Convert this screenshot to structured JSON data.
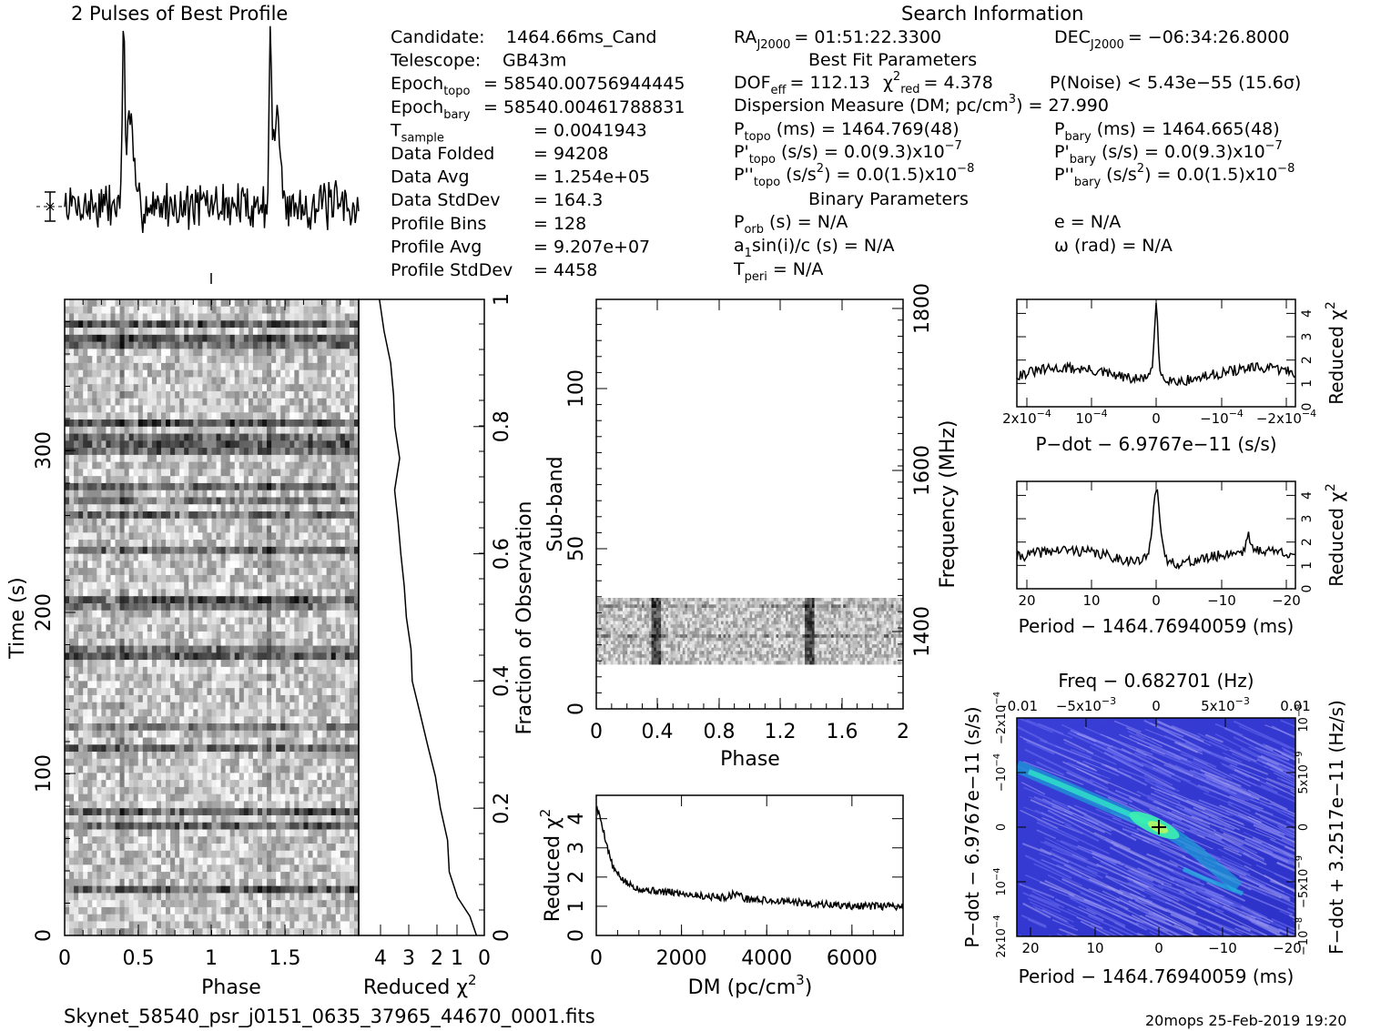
{
  "page": {
    "profile_title": "2 Pulses of Best Profile",
    "search_title": "Search Information",
    "filename": "Skynet_58540_psr_j0151_0635_37965_44670_0001.fits",
    "footer_stamp": "20mops 25-Feb-2019 19:20"
  },
  "info": {
    "col1": [
      {
        "label": "Candidate:",
        "value": "1464.66ms_Cand"
      },
      {
        "label": "Telescope:",
        "value": "GB43m"
      },
      {
        "label": "Epoch",
        "sub": "topo",
        "value": "= 58540.00756944445"
      },
      {
        "label": "Epoch",
        "sub": "bary",
        "value": "= 58540.00461788831"
      },
      {
        "label": "T",
        "sub": "sample",
        "value": "= 0.0041943"
      },
      {
        "label": "Data Folded",
        "value": "= 94208"
      },
      {
        "label": "Data Avg",
        "value": "= 1.254e+05"
      },
      {
        "label": "Data StdDev",
        "value": "= 164.3"
      },
      {
        "label": "Profile Bins",
        "value": "= 128"
      },
      {
        "label": "Profile Avg",
        "value": "= 9.207e+07"
      },
      {
        "label": "Profile StdDev",
        "value": "= 4458"
      }
    ],
    "ra": "RA",
    "ra_sub": "J2000",
    "ra_value": "= 01:51:22.3300",
    "dec": "DEC",
    "dec_sub": "J2000",
    "dec_value": "= −06:34:26.8000",
    "best_fit_title": "Best Fit Parameters",
    "dof": "DOF",
    "dof_sub": "eff",
    "dof_value": "= 112.13",
    "chi_label": "χ",
    "chi_sup": "2",
    "chi_sub": "red",
    "chi_value": "= 4.378",
    "pnoise": "P(Noise) < 5.43e−55  (15.6σ)",
    "dm_line": "Dispersion Measure (DM; pc/cm",
    "dm_sup": "3",
    "dm_value": ") = 27.990",
    "p_topo": "P",
    "p_topo_sub": "topo",
    "p_topo_value": "(ms) =  1464.769(48)",
    "p_bary": "P",
    "p_bary_sub": "bary",
    "p_bary_value": "(ms) =  1464.665(48)",
    "pd_topo": "P'",
    "pd_topo_sub": "topo",
    "pd_topo_value": "(s/s) = 0.0(9.3)x10",
    "pd_topo_exp": "−7",
    "pd_bary": "P'",
    "pd_bary_sub": "bary",
    "pd_bary_value": "(s/s) = 0.0(9.3)x10",
    "pd_bary_exp": "−7",
    "pdd_topo": "P''",
    "pdd_topo_sub": "topo",
    "pdd_topo_value": "(s/s",
    "pdd_topo_value2": ") = 0.0(1.5)x10",
    "pdd_topo_exp": "−8",
    "pdd_bary": "P''",
    "pdd_bary_sub": "bary",
    "pdd_bary_value": "(s/s",
    "pdd_bary_value2": ") = 0.0(1.5)x10",
    "pdd_bary_exp": "−8",
    "sq": "2",
    "binary_title": "Binary Parameters",
    "porb": "P",
    "porb_sub": "orb",
    "porb_value": "(s) = N/A",
    "asini": "a",
    "asini_sub": "1",
    "asini_value": "sin(i)/c (s) = N/A",
    "tperi": "T",
    "tperi_sub": "peri",
    "tperi_value": "= N/A",
    "ecc": "e = N/A",
    "omega": "ω (rad) = N/A"
  },
  "chart_data": [
    {
      "type": "line",
      "id": "profile",
      "title": "2 Pulses of Best Profile",
      "x": "phase 0-2 (two pulses)",
      "peaks": [
        {
          "phase": 0.4,
          "height": 1.0
        },
        {
          "phase": 1.4,
          "height": 1.0
        }
      ],
      "baseline_note": "noise around mean"
    },
    {
      "type": "heatmap",
      "id": "time-phase",
      "xlabel": "Phase",
      "ylabel": "Time (s)",
      "xticks": [
        "0",
        "0.5",
        "1",
        "1.5"
      ],
      "yticks": [
        "0",
        "100",
        "200",
        "300"
      ],
      "xlim": [
        0,
        2
      ],
      "ylim": [
        0,
        384
      ]
    },
    {
      "type": "line",
      "id": "time-redchi",
      "xlabel": "Reduced χ",
      "xlabel_sup": "2",
      "ylabel": "Fraction of Observation",
      "xticks": [
        "4",
        "3",
        "2",
        "1",
        "0"
      ],
      "yticks": [
        "0",
        "0.2",
        "0.4",
        "0.6",
        "0.8",
        "1"
      ],
      "points": [
        [
          0.3,
          0.0
        ],
        [
          0.5,
          0.03
        ],
        [
          0.9,
          0.06
        ],
        [
          1.2,
          0.1
        ],
        [
          1.3,
          0.15
        ],
        [
          1.5,
          0.2
        ],
        [
          1.7,
          0.25
        ],
        [
          2.0,
          0.3
        ],
        [
          2.3,
          0.35
        ],
        [
          2.5,
          0.4
        ],
        [
          2.6,
          0.45
        ],
        [
          2.7,
          0.5
        ],
        [
          2.8,
          0.55
        ],
        [
          2.9,
          0.6
        ],
        [
          3.0,
          0.65
        ],
        [
          3.1,
          0.7
        ],
        [
          3.0,
          0.75
        ],
        [
          3.15,
          0.8
        ],
        [
          3.2,
          0.85
        ],
        [
          3.3,
          0.9
        ],
        [
          3.5,
          0.95
        ],
        [
          3.7,
          1.0
        ]
      ]
    },
    {
      "type": "heatmap",
      "id": "subband-phase",
      "xlabel": "Phase",
      "ylabel": "Sub-band",
      "y2label": "Frequency (MHz)",
      "xticks": [
        "0",
        "0.4",
        "0.8",
        "1.2",
        "1.6",
        "2"
      ],
      "yticks": [
        "0",
        "50",
        "100"
      ],
      "y2ticks": [
        "1400",
        "1600",
        "1800"
      ],
      "band_range": [
        15,
        35
      ]
    },
    {
      "type": "line",
      "id": "dm-redchi",
      "xlabel": "DM (pc/cm",
      "xlabel_sup": "3",
      "xlabel_end": ")",
      "ylabel": "Reduced χ",
      "ylabel_sup": "2",
      "xticks": [
        "0",
        "2000",
        "4000",
        "6000"
      ],
      "yticks": [
        "0",
        "1",
        "2",
        "3",
        "4"
      ],
      "xlim": [
        0,
        7200
      ],
      "ylim": [
        0,
        4.8
      ],
      "points": [
        [
          0,
          4.4
        ],
        [
          100,
          4.0
        ],
        [
          200,
          3.4
        ],
        [
          300,
          2.8
        ],
        [
          400,
          2.3
        ],
        [
          500,
          2.1
        ],
        [
          700,
          1.8
        ],
        [
          1000,
          1.6
        ],
        [
          1500,
          1.5
        ],
        [
          2000,
          1.45
        ],
        [
          2500,
          1.35
        ],
        [
          3000,
          1.3
        ],
        [
          3300,
          1.45
        ],
        [
          3500,
          1.25
        ],
        [
          4000,
          1.2
        ],
        [
          4500,
          1.15
        ],
        [
          5000,
          1.1
        ],
        [
          5500,
          1.05
        ],
        [
          6000,
          1.0
        ],
        [
          6500,
          1.0
        ],
        [
          7200,
          1.0
        ]
      ]
    },
    {
      "type": "line",
      "id": "pdot-redchi",
      "xlabel": "P−dot − 6.9767e−11 (s/s)",
      "ylabel": "Reduced χ",
      "ylabel_sup": "2",
      "xticks": [
        "2x10",
        "10",
        "0",
        "−10",
        "−2x10"
      ],
      "xtick_exp": [
        "−4",
        "−4",
        "",
        "−4",
        "−4"
      ],
      "yticks": [
        "0",
        "1",
        "2",
        "3",
        "4"
      ],
      "peak": 4.3
    },
    {
      "type": "line",
      "id": "period-redchi",
      "xlabel": "Period − 1464.76940059 (ms)",
      "ylabel": "Reduced χ",
      "ylabel_sup": "2",
      "xticks": [
        "20",
        "10",
        "0",
        "−10",
        "−20"
      ],
      "yticks": [
        "0",
        "1",
        "2",
        "3",
        "4"
      ],
      "peak": 4.3
    },
    {
      "type": "heatmap",
      "id": "p-pdot",
      "title": "Freq − 0.682701 (Hz)",
      "xlabel": "Period − 1464.76940059 (ms)",
      "ylabel": "P−dot − 6.9767e−11 (s/s)",
      "y2label": "F−dot + 3.2517e−11 (Hz/s)",
      "xticks": [
        "20",
        "10",
        "0",
        "−10",
        "−20"
      ],
      "topticks": [
        "−0.01",
        "−5x10",
        "0",
        "5x10",
        "0.01"
      ],
      "topticks_exp": [
        "",
        "−3",
        "",
        "−3",
        ""
      ],
      "yticks": [
        "2x10",
        "10",
        "0",
        "−10",
        "−2x10"
      ],
      "ytick_exp": [
        "−4",
        "−4",
        "",
        "−4",
        "−4"
      ],
      "y2ticks": [
        "−10",
        "−5x10",
        "0",
        "5x10",
        "10"
      ],
      "y2tick_exp": [
        "−8",
        "−9",
        "",
        "−9",
        "−8"
      ]
    }
  ]
}
